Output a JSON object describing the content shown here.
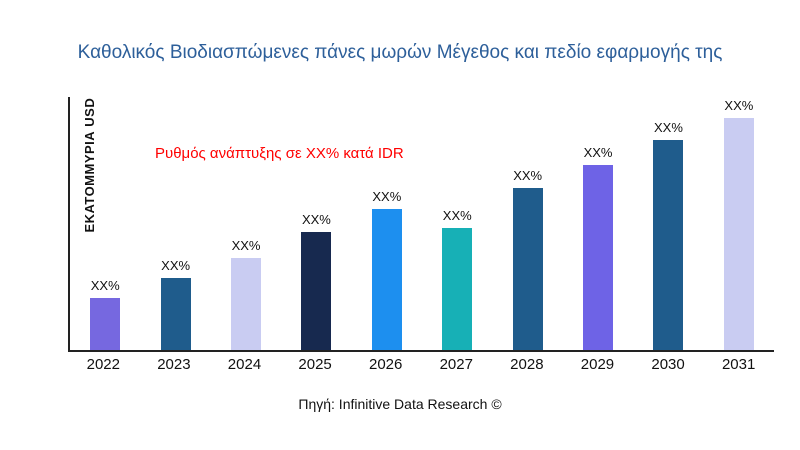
{
  "title": "Καθολικός Βιοδιασπώμενες πάνες μωρών Μέγεθος και πεδίο εφαρμογής της",
  "y_axis_label": "ΕΚΑΤΟΜΜΥΡΙΑ USD",
  "annotation": "Ρυθμός ανάπτυξης σε XX% κατά IDR",
  "source": "Πηγή: Infinitive Data Research ©",
  "colors": {
    "title": "#2d5f9a",
    "annotation": "#ff0000",
    "axis": "#222222"
  },
  "chart_data": {
    "type": "bar",
    "title": "Καθολικός Βιοδιασπώμενες πάνες μωρών Μέγεθος και πεδίο εφαρμογής της",
    "xlabel": "",
    "ylabel": "ΕΚΑΤΟΜΜΥΡΙΑ USD",
    "categories": [
      "2022",
      "2023",
      "2024",
      "2025",
      "2026",
      "2027",
      "2028",
      "2029",
      "2030",
      "2031"
    ],
    "values": [
      52,
      72,
      92,
      118,
      141,
      122,
      162,
      185,
      210,
      232
    ],
    "ylim": [
      0,
      255
    ],
    "grid": false,
    "legend": "none",
    "bar_labels": [
      "XX%",
      "XX%",
      "XX%",
      "XX%",
      "XX%",
      "XX%",
      "XX%",
      "XX%",
      "XX%",
      "XX%"
    ],
    "bar_colors": [
      "#7668e0",
      "#1f5c8c",
      "#c9ccf2",
      "#17294f",
      "#1d8fef",
      "#17b0b6",
      "#1f5c8c",
      "#6e63e6",
      "#1f5c8c",
      "#c9ccf2"
    ],
    "annotation": "Ρυθμός ανάπτυξης σε XX% κατά IDR"
  }
}
